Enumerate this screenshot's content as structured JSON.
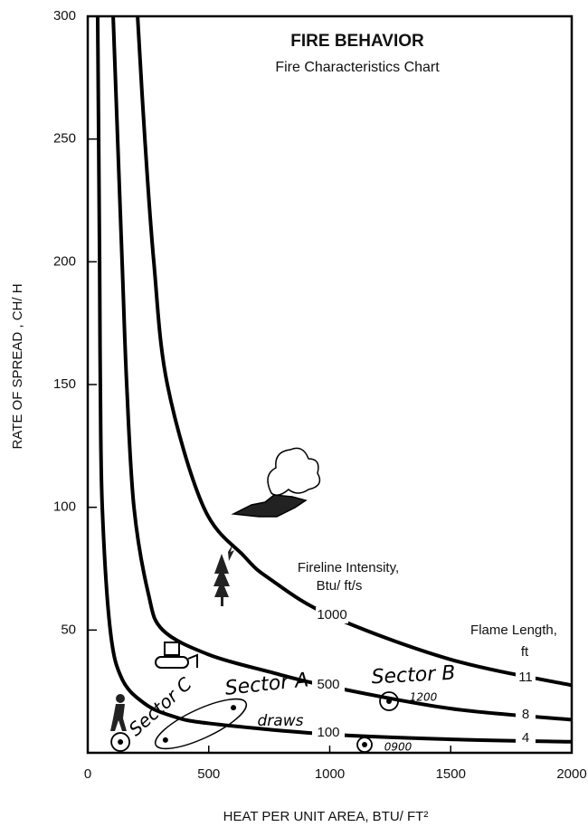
{
  "chart_data": {
    "type": "line",
    "title": "FIRE BEHAVIOR",
    "subtitle": "Fire Characteristics Chart",
    "x_label": "HEAT PER UNIT AREA, BTU/ FT²",
    "y_label": "RATE OF SPREAD , CH/ H",
    "series_title": [
      "Fireline Intensity,",
      "Btu/ ft/s"
    ],
    "flame_title": [
      "Flame Length,",
      "ft"
    ],
    "xlim": [
      0,
      2000
    ],
    "xticks": [
      0,
      500,
      1000,
      1500,
      2000
    ],
    "ylim": [
      0,
      300
    ],
    "yticks": [
      50,
      100,
      150,
      200,
      250,
      300
    ],
    "color": "#000000",
    "series": [
      {
        "name": "1000",
        "flame_length": 11,
        "x": [
          206,
          236,
          273,
          329,
          479,
          647,
          750,
          1000,
          1500,
          2000
        ],
        "values": [
          300,
          250,
          200,
          150,
          100,
          80,
          71,
          56,
          38,
          27.5
        ]
      },
      {
        "name": "500",
        "flame_length": 8,
        "x": [
          105,
          142,
          161,
          191,
          250,
          310,
          500,
          750,
          1000,
          1500,
          2000
        ],
        "values": [
          300,
          200,
          150,
          100,
          65,
          50,
          40,
          33,
          27,
          18,
          13.5
        ]
      },
      {
        "name": "100",
        "flame_length": 4,
        "x": [
          41,
          49,
          52,
          60,
          93,
          142,
          236,
          348,
          500,
          1000,
          1500,
          2000
        ],
        "values": [
          300,
          200,
          150,
          100,
          50,
          30,
          20,
          15,
          12,
          7.5,
          5.5,
          4.5
        ]
      }
    ],
    "points": {
      "x": [
        135,
        321,
        602,
        1245,
        1144
      ],
      "y": [
        4.4,
        5.2,
        18.4,
        21,
        3.3
      ]
    },
    "annotations": [
      "Sector A",
      "Sector B",
      "Sector C",
      "draws",
      "1200",
      "0900"
    ]
  }
}
